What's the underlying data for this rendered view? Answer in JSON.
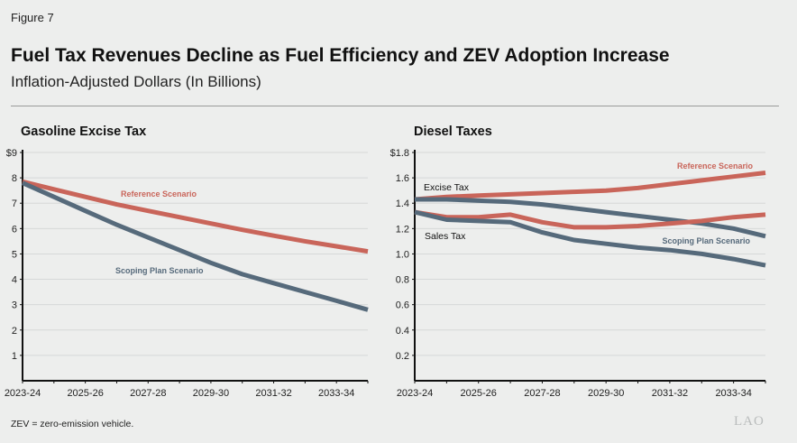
{
  "figure_label": "Figure 7",
  "title": "Fuel Tax Revenues Decline as Fuel Efficiency and ZEV Adoption Increase",
  "subtitle": "Inflation-Adjusted Dollars (In Billions)",
  "note": "ZEV = zero-emission vehicle.",
  "logo": "LAO",
  "colors": {
    "reference": "#c9655a",
    "scoping": "#566a7b",
    "grid": "#d6d8d8",
    "background": "#edeeed"
  },
  "chart_data": [
    {
      "type": "line",
      "title": "Gasoline Excise Tax",
      "x": [
        "2023-24",
        "2024-25",
        "2025-26",
        "2026-27",
        "2027-28",
        "2028-29",
        "2029-30",
        "2030-31",
        "2031-32",
        "2032-33",
        "2033-34",
        "2034-35"
      ],
      "x_tick_labels": [
        "2023-24",
        "2025-26",
        "2027-28",
        "2029-30",
        "2031-32",
        "2033-34"
      ],
      "ylim": [
        0,
        9
      ],
      "y_tick_labels": [
        "$9",
        "8",
        "7",
        "6",
        "5",
        "4",
        "3",
        "2",
        "1"
      ],
      "grid": true,
      "series": [
        {
          "name": "Reference Scenario",
          "color": "reference",
          "values": [
            7.85,
            7.55,
            7.25,
            6.95,
            6.7,
            6.45,
            6.2,
            5.95,
            5.72,
            5.5,
            5.3,
            5.1
          ]
        },
        {
          "name": "Scoping Plan Scenario",
          "color": "scoping",
          "values": [
            7.8,
            7.25,
            6.7,
            6.15,
            5.65,
            5.15,
            4.65,
            4.2,
            3.85,
            3.5,
            3.15,
            2.8
          ]
        }
      ],
      "annotations": []
    },
    {
      "type": "line",
      "title": "Diesel Taxes",
      "x": [
        "2023-24",
        "2024-25",
        "2025-26",
        "2026-27",
        "2027-28",
        "2028-29",
        "2029-30",
        "2030-31",
        "2031-32",
        "2032-33",
        "2033-34",
        "2034-35"
      ],
      "x_tick_labels": [
        "2023-24",
        "2025-26",
        "2027-28",
        "2029-30",
        "2031-32",
        "2033-34"
      ],
      "ylim": [
        0,
        1.8
      ],
      "y_tick_labels": [
        "$1.8",
        "1.6",
        "1.4",
        "1.2",
        "1.0",
        "0.8",
        "0.6",
        "0.4",
        "0.2"
      ],
      "grid": true,
      "series": [
        {
          "name": "Reference Scenario",
          "color": "reference",
          "values": [
            1.43,
            1.45,
            1.46,
            1.47,
            1.48,
            1.49,
            1.5,
            1.52,
            1.55,
            1.58,
            1.61,
            1.64
          ]
        },
        {
          "name": "Scoping Plan Scenario",
          "color": "scoping",
          "values": [
            1.43,
            1.43,
            1.42,
            1.41,
            1.39,
            1.36,
            1.33,
            1.3,
            1.27,
            1.24,
            1.2,
            1.14
          ]
        },
        {
          "name": "Reference Scenario",
          "color": "reference",
          "values": [
            1.33,
            1.29,
            1.29,
            1.31,
            1.25,
            1.21,
            1.21,
            1.22,
            1.24,
            1.26,
            1.29,
            1.31
          ]
        },
        {
          "name": "Scoping Plan Scenario",
          "color": "scoping",
          "values": [
            1.33,
            1.27,
            1.26,
            1.25,
            1.17,
            1.11,
            1.08,
            1.05,
            1.03,
            1.0,
            0.96,
            0.91
          ]
        }
      ],
      "annotations": [
        "Excise Tax",
        "Sales Tax"
      ]
    }
  ]
}
